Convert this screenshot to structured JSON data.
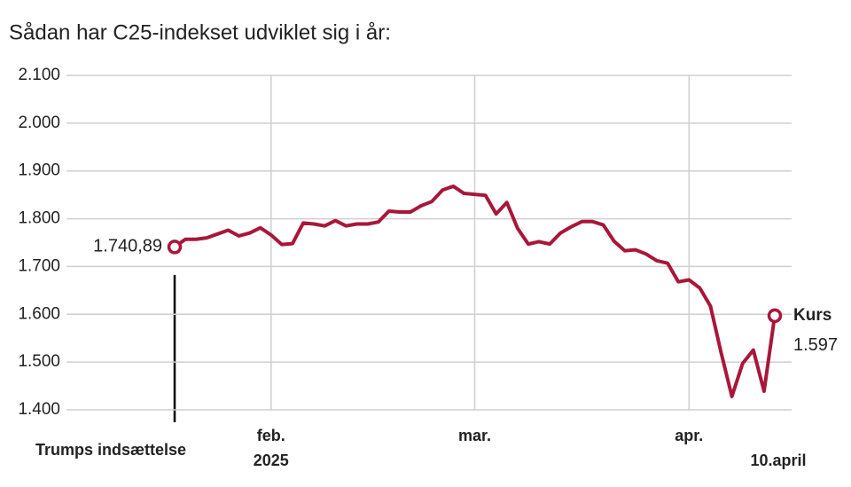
{
  "chart_data": {
    "type": "line",
    "title": "Sådan har C25-indekset udviklet sig i år:",
    "categories": [
      null,
      null,
      null,
      null,
      null,
      null,
      null,
      null,
      null,
      null,
      null,
      null,
      null,
      null,
      null,
      null,
      null,
      null,
      null,
      null,
      null,
      null,
      null,
      null,
      null,
      null,
      null,
      null,
      null,
      null,
      null,
      null,
      null,
      null,
      null,
      null,
      null,
      null,
      null,
      null,
      null,
      null,
      null,
      null,
      null,
      null,
      null,
      null,
      null,
      null,
      null,
      null,
      null,
      null,
      null,
      null,
      null
    ],
    "series": [
      {
        "name": "Kurs",
        "color": "#a8173a",
        "values": [
          1740.89,
          1757,
          1757,
          1760,
          1768,
          1776,
          1764,
          1770,
          1781,
          1766,
          1746,
          1748,
          1791,
          1789,
          1785,
          1796,
          1785,
          1789,
          1789,
          1793,
          1816,
          1814,
          1814,
          1827,
          1836,
          1860,
          1868,
          1853,
          1851,
          1849,
          1810,
          1834,
          1780,
          1747,
          1752,
          1747,
          1770,
          1783,
          1794,
          1794,
          1787,
          1753,
          1733,
          1735,
          1726,
          1712,
          1707,
          1668,
          1672,
          1655,
          1617,
          1519,
          1428,
          1497,
          1525,
          1439,
          1597
        ],
        "value_labels": [
          "1.740,89",
          null,
          null,
          null,
          null,
          null,
          null,
          null,
          null,
          null,
          null,
          null,
          null,
          null,
          null,
          null,
          null,
          null,
          null,
          null,
          null,
          null,
          null,
          null,
          null,
          null,
          null,
          null,
          null,
          null,
          null,
          null,
          null,
          null,
          null,
          null,
          null,
          null,
          null,
          null,
          null,
          null,
          null,
          null,
          null,
          null,
          null,
          null,
          null,
          null,
          null,
          null,
          null,
          null,
          null,
          null,
          "1.597"
        ]
      }
    ],
    "xticks": [
      {
        "value": 9,
        "label": "feb."
      },
      {
        "value": 28,
        "label": "mar."
      },
      {
        "value": 48,
        "label": "apr."
      }
    ],
    "xtick_year": "2025",
    "ylim": [
      1400,
      2100
    ],
    "yticks": [
      {
        "value": 1400,
        "label": "1.400"
      },
      {
        "value": 1500,
        "label": "1.500"
      },
      {
        "value": 1600,
        "label": "1.600"
      },
      {
        "value": 1700,
        "label": "1.700"
      },
      {
        "value": 1800,
        "label": "1.800"
      },
      {
        "value": 1900,
        "label": "1.900"
      },
      {
        "value": 2000,
        "label": "2.000"
      },
      {
        "value": 2100,
        "label": "2.100"
      }
    ],
    "grid": true,
    "annotations": {
      "start": "Trumps indsættelse",
      "end_date": "10.april"
    }
  }
}
